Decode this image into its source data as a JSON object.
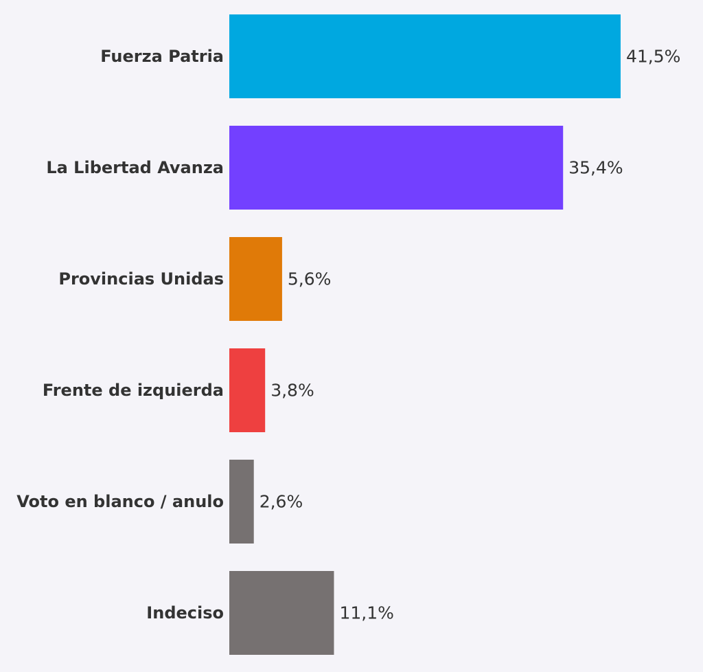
{
  "chart_data": {
    "type": "bar",
    "orientation": "horizontal",
    "title": "",
    "xlabel": "",
    "ylabel": "",
    "categories": [
      "Fuerza Patria",
      "La Libertad Avanza",
      "Provincias Unidas",
      "Frente de izquierda",
      "Voto en blanco / anulo",
      "Indeciso"
    ],
    "values": [
      41.5,
      35.4,
      5.6,
      3.8,
      2.6,
      11.1
    ],
    "value_labels": [
      "41,5%",
      "35,4%",
      "5,6%",
      "3,8%",
      "2,6%",
      "11,1%"
    ],
    "colors": [
      "#00a8e0",
      "#7340ff",
      "#e07a08",
      "#ee4040",
      "#767171",
      "#767171"
    ],
    "xlim": [
      0,
      41.5
    ],
    "grid": false,
    "legend": "none"
  }
}
